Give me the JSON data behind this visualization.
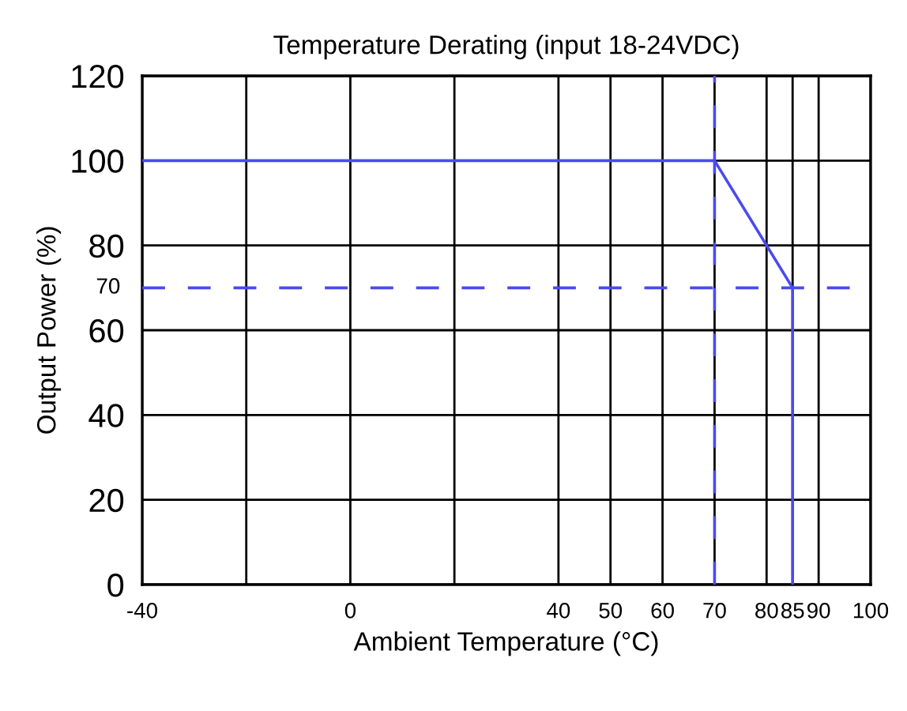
{
  "chart_data": {
    "type": "line",
    "title": "Temperature Derating (input 18-24VDC)",
    "xlabel": "Ambient Temperature (°C)",
    "ylabel": "Output Power (%)",
    "series": [
      {
        "color": "#4b4bef",
        "x": [
          -40,
          70,
          85,
          85
        ],
        "values": [
          100,
          100,
          70,
          0
        ]
      }
    ],
    "xlim": [
      -40,
      100
    ],
    "xticks": [
      -40,
      {
        "value": -20,
        "label": null
      },
      0,
      {
        "value": 20,
        "label": null
      },
      40,
      50,
      60,
      70,
      80,
      85,
      90,
      100
    ],
    "ylim": [
      0,
      120
    ],
    "yticks": [
      0,
      20,
      40,
      60,
      80,
      100,
      120
    ],
    "grid": true,
    "line_style": "solid",
    "marker": "none",
    "legend": false,
    "ref_lines": [
      {
        "axis": "y",
        "value": 70,
        "label": "70",
        "color": "#4b4bef",
        "line_style": "dashed"
      },
      {
        "axis": "x",
        "value": 70,
        "label": null,
        "color": "#4b4bef",
        "line_style": "dashed"
      }
    ]
  }
}
